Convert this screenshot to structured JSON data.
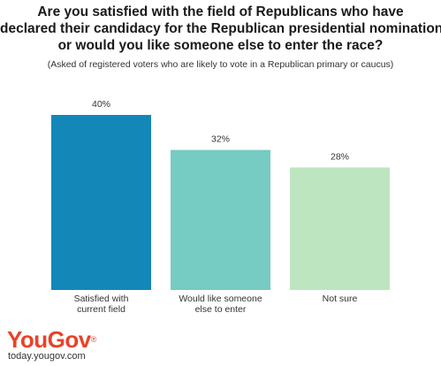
{
  "title_lines": [
    "Are you satisfied with the field of Republicans who have",
    "declared their candidacy for the Republican presidential nomination",
    "or would you like someone else to enter the race?"
  ],
  "subtitle": "(Asked of registered voters who are likely to vote in a Republican primary or caucus)",
  "brand": {
    "logo_text": "YouGov",
    "logo_mark": "®",
    "logo_color": "#e8432a",
    "url": "today.yougov.com"
  },
  "chart_data": {
    "type": "bar",
    "categories": [
      [
        "Satisfied with",
        "current field"
      ],
      [
        "Would like someone",
        "else to enter"
      ],
      [
        "Not sure"
      ]
    ],
    "values": [
      40,
      32,
      28
    ],
    "value_labels": [
      "40%",
      "32%",
      "28%"
    ],
    "colors": [
      "#1387b8",
      "#76cbc2",
      "#bde5c0"
    ],
    "ylim": [
      0,
      40
    ],
    "grid": false,
    "legend": "none"
  }
}
